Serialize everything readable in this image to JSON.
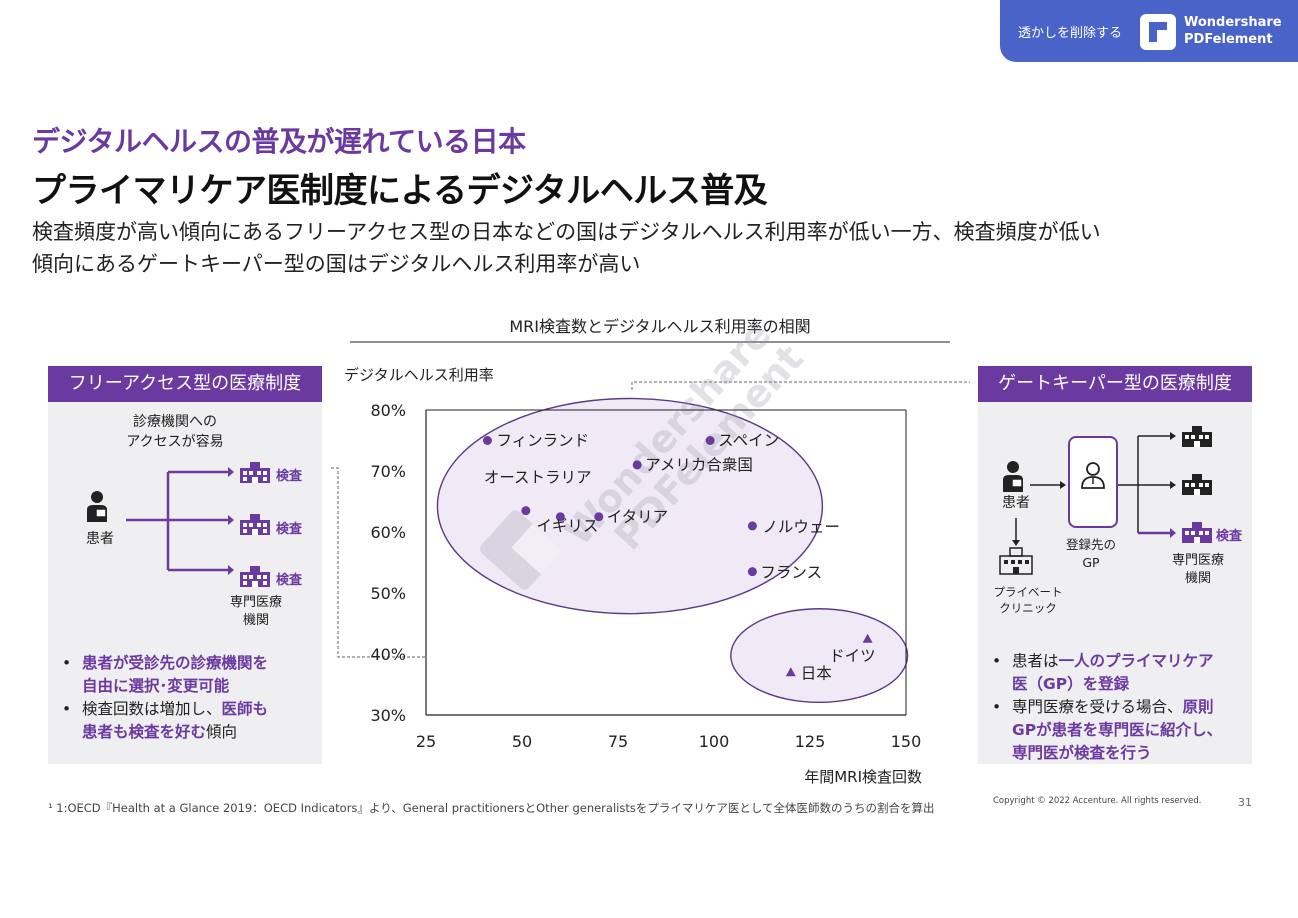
{
  "watermark": {
    "remove_label": "透かしを削除する",
    "brand_line1": "Wondershare",
    "brand_line2": "PDFelement",
    "overlay_line1": "Wondershare",
    "overlay_line2": "PDFelement"
  },
  "header": {
    "kicker": "デジタルヘルスの普及が遅れている日本",
    "title": "プライマリケア医制度によるデジタルヘルス普及",
    "subtitle_line1": "検査頻度が高い傾向にあるフリーアクセス型の日本などの国はデジタルヘルス利用率が低い一方、検査頻度が低い",
    "subtitle_line2": "傾向にあるゲートキーパー型の国はデジタルヘルス利用率が高い"
  },
  "left_panel": {
    "title": "フリーアクセス型の医療制度",
    "access_line1": "診療機関への",
    "access_line2": "アクセスが容易",
    "patient": "患者",
    "kensa": "検査",
    "facility_line1": "専門医療",
    "facility_line2": "機関",
    "bullet1_a": "患者が受診先の診療機関を",
    "bullet1_b": "自由に選択･変更可能",
    "bullet2_a": "検査回数は増加し、",
    "bullet2_b": "医師も",
    "bullet2_c": "患者も検査を好む",
    "bullet2_d": "傾向"
  },
  "right_panel": {
    "title": "ゲートキーパー型の医療制度",
    "patient": "患者",
    "gp_line1": "登録先の",
    "gp_line2": "GP",
    "clinic_line1": "プライベート",
    "clinic_line2": "クリニック",
    "kensa": "検査",
    "specialist_line1": "専門医療",
    "specialist_line2": "機関",
    "bullet1_a": "患者は",
    "bullet1_b": "一人のプライマリケア",
    "bullet1_c": "医（GP）を登録",
    "bullet2_a": "専門医療を受ける場合、",
    "bullet2_b": "原則",
    "bullet2_c": "GPが患者を専門医に紹介し、",
    "bullet2_d": "専門医が検査を行う"
  },
  "chart_data": {
    "type": "scatter",
    "title": "MRI検査数とデジタルヘルス利用率の相関",
    "xlabel": "年間MRI検査回数",
    "ylabel": "デジタルヘルス利用率",
    "xlim": [
      25,
      150
    ],
    "ylim": [
      30,
      80
    ],
    "xticks": [
      "25",
      "50",
      "75",
      "100",
      "125",
      "150"
    ],
    "yticks": [
      "30%",
      "40%",
      "50%",
      "60%",
      "70%",
      "80%"
    ],
    "grid": false,
    "points": [
      {
        "label": "フィンランド",
        "x": 41,
        "y": 75,
        "marker": "circle",
        "group": "gatekeeper"
      },
      {
        "label": "スペイン",
        "x": 99,
        "y": 75,
        "marker": "circle",
        "group": "gatekeeper"
      },
      {
        "label": "アメリカ合衆国",
        "x": 80,
        "y": 71,
        "marker": "circle",
        "group": "gatekeeper"
      },
      {
        "label": "オーストラリア",
        "x": 51,
        "y": 63.5,
        "marker": "circle",
        "group": "gatekeeper"
      },
      {
        "label": "イギリス",
        "x": 60,
        "y": 62.5,
        "marker": "circle",
        "group": "gatekeeper"
      },
      {
        "label": "イタリア",
        "x": 70,
        "y": 62.5,
        "marker": "circle",
        "group": "gatekeeper"
      },
      {
        "label": "ノルウェー",
        "x": 110,
        "y": 61,
        "marker": "circle",
        "group": "gatekeeper"
      },
      {
        "label": "フランス",
        "x": 110,
        "y": 53.5,
        "marker": "circle",
        "group": "gatekeeper"
      },
      {
        "label": "ドイツ",
        "x": 140,
        "y": 42.5,
        "marker": "triangle",
        "group": "free-access"
      },
      {
        "label": "日本",
        "x": 120,
        "y": 37,
        "marker": "triangle",
        "group": "free-access"
      }
    ],
    "colors": {
      "marker": "#6b3aa0",
      "ellipse_fill": "#efeaf5",
      "ellipse_stroke": "#5a3a86"
    }
  },
  "footer": {
    "footnote": "¹ 1:OECD『Health at a Glance 2019：OECD Indicators』より、General practitionersとOther generalistsをプライマリケア医として全体医師数のうちの割合を算出",
    "copyright": "Copyright © 2022 Accenture. All rights reserved.",
    "page_number": "31"
  }
}
